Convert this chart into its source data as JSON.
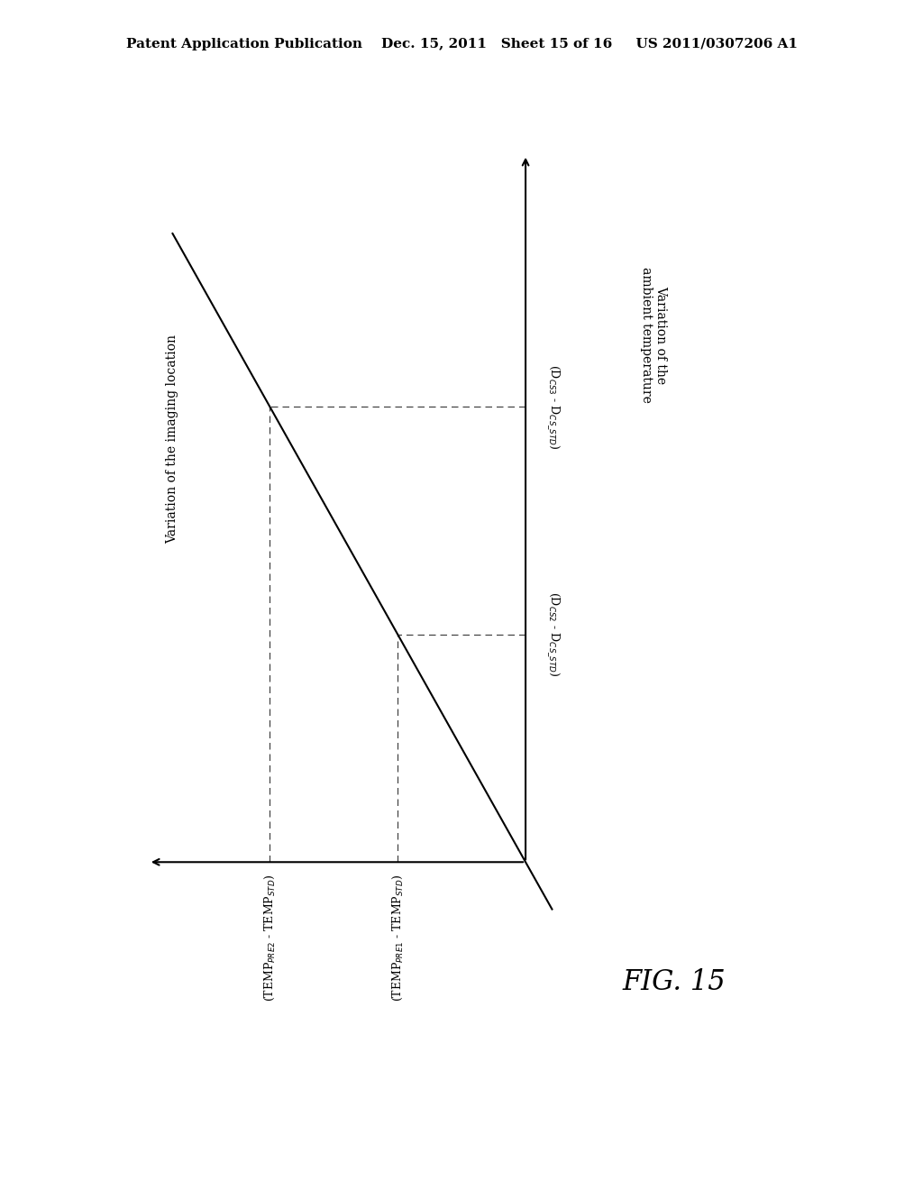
{
  "background_color": "#ffffff",
  "header_text": "Patent Application Publication    Dec. 15, 2011   Sheet 15 of 16     US 2011/0307206 A1",
  "header_fontsize": 11,
  "fig_label": "FIG. 15",
  "fig_label_fontsize": 22,
  "yaxis_label_line1": "Variation of the",
  "yaxis_label_line2": "ambient temperature",
  "xaxis_label": "Variation of the imaging location",
  "x_label1": "(TEMP$_{PRE1}$ - TEMP$_{STD}$)",
  "x_label2": "(TEMP$_{PRE2}$ - TEMP$_{STD}$)",
  "y_label1": "(D$_{CS2}$ - D$_{CS\\_STD}$)",
  "y_label2": "(D$_{CS3}$ - D$_{CS\\_STD}$)",
  "line_color": "#000000",
  "dashed_color": "#444444",
  "axis_color": "#000000",
  "text_color": "#000000",
  "fontsize_axis_label": 10,
  "fontsize_tick_label": 9
}
